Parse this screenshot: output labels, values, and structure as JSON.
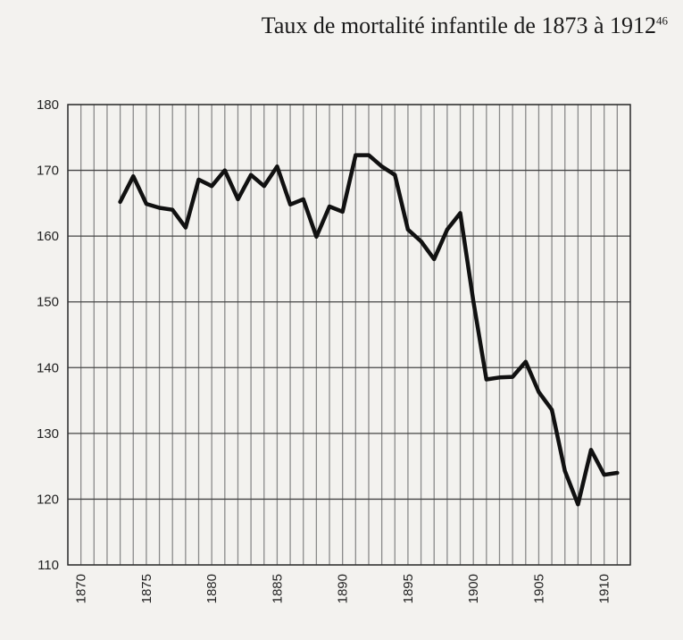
{
  "chart_data": {
    "type": "line",
    "title": "Taux de mortalité infantile de 1873 à 1912",
    "title_superscript": "46",
    "xlabel": "",
    "ylabel": "",
    "xlim": [
      1869,
      1912
    ],
    "ylim": [
      110,
      180
    ],
    "grid": true,
    "y_ticks": [
      110,
      120,
      130,
      140,
      150,
      160,
      170,
      180
    ],
    "x_ticks": [
      1870,
      1875,
      1880,
      1885,
      1890,
      1895,
      1900,
      1905,
      1910
    ],
    "series": [
      {
        "x": [
          1873,
          1874,
          1875,
          1876,
          1877,
          1878,
          1879,
          1880,
          1881,
          1882,
          1883,
          1884,
          1885,
          1886,
          1887,
          1888,
          1889,
          1890,
          1891,
          1892,
          1893,
          1894,
          1895,
          1896,
          1897,
          1898,
          1899,
          1900,
          1901,
          1902,
          1903,
          1904,
          1905,
          1906,
          1907,
          1908,
          1909,
          1910,
          1911
        ],
        "values": [
          165.2,
          169.1,
          164.9,
          164.3,
          164.0,
          161.3,
          168.6,
          167.6,
          170.0,
          165.6,
          169.3,
          167.6,
          170.6,
          164.8,
          165.6,
          159.9,
          164.5,
          163.7,
          172.3,
          172.3,
          170.6,
          169.3,
          161.0,
          159.2,
          156.5,
          161.0,
          163.5,
          150.1,
          138.2,
          138.5,
          138.6,
          140.9,
          136.3,
          133.6,
          124.3,
          119.2,
          127.5,
          123.7,
          124.0
        ]
      }
    ]
  }
}
